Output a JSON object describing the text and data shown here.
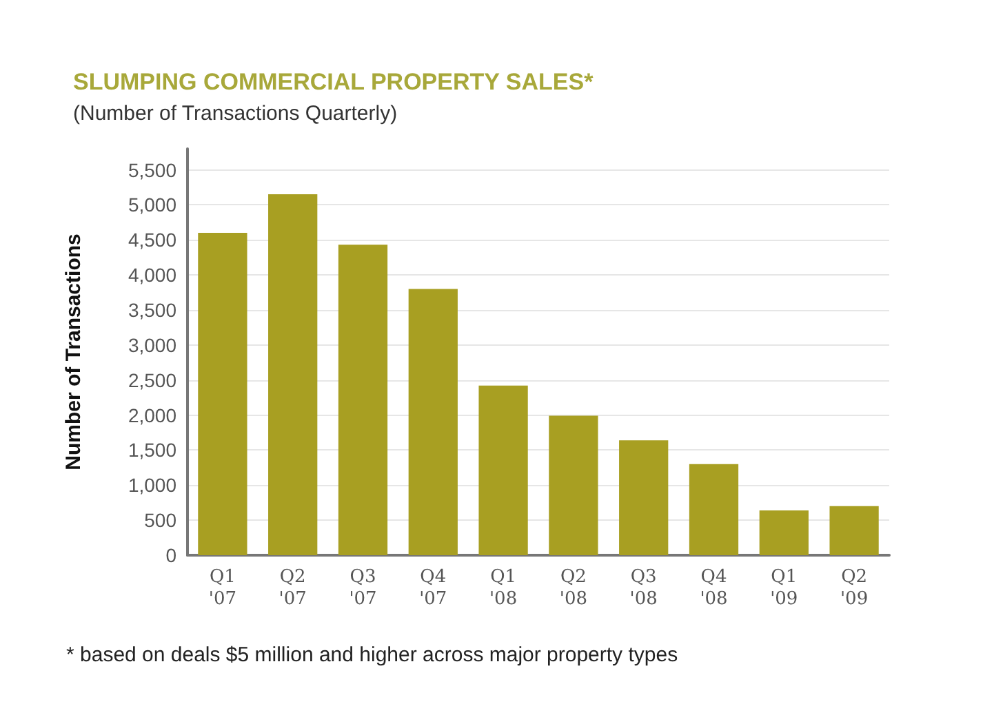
{
  "chart_data": {
    "type": "bar",
    "title": "SLUMPING COMMERCIAL PROPERTY SALES*",
    "subtitle": "(Number of Transactions Quarterly)",
    "ylabel": "Number of Transactions",
    "categories": [
      "Q1\n'07",
      "Q2\n'07",
      "Q3\n'07",
      "Q4\n'07",
      "Q1\n'08",
      "Q2\n'08",
      "Q3\n'08",
      "Q4\n'08",
      "Q1\n'09",
      "Q2\n'09"
    ],
    "values": [
      4600,
      5150,
      4430,
      3800,
      2420,
      1990,
      1640,
      1300,
      640,
      700
    ],
    "color": "#a89f22",
    "ylim": [
      0,
      5800
    ],
    "yticks": [
      {
        "value": 0,
        "label": "0"
      },
      {
        "value": 500,
        "label": "500"
      },
      {
        "value": 1000,
        "label": "1,000"
      },
      {
        "value": 1500,
        "label": "1,500"
      },
      {
        "value": 2000,
        "label": "2,000"
      },
      {
        "value": 2500,
        "label": "2,500"
      },
      {
        "value": 3000,
        "label": "3,000"
      },
      {
        "value": 3500,
        "label": "3,500"
      },
      {
        "value": 4000,
        "label": "4,000"
      },
      {
        "value": 4500,
        "label": "4,500"
      },
      {
        "value": 5000,
        "label": "5,000"
      },
      {
        "value": 5500,
        "label": "5,500"
      }
    ],
    "grid": "y",
    "annotations": [
      "* based on deals $5 million and higher across major property types"
    ]
  }
}
